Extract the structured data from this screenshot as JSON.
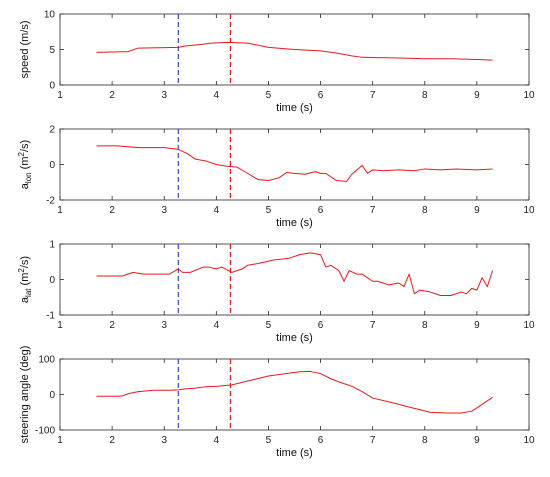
{
  "colors": {
    "series": "#e8191c",
    "marker_blue": "#3344dd",
    "marker_red": "#e8191c",
    "axis": "#262626"
  },
  "chart_data": [
    {
      "type": "line",
      "xlabel": "time (s)",
      "ylabel": "speed (m/s)",
      "xlim": [
        1,
        10
      ],
      "ylim": [
        0,
        10
      ],
      "xticks": [
        "1",
        "2",
        "3",
        "4",
        "5",
        "6",
        "7",
        "8",
        "9",
        "10"
      ],
      "yticks": [
        "0",
        "5",
        "10"
      ],
      "grid": false,
      "vlines": [
        {
          "x": 3.27,
          "color": "blue",
          "style": "dashed"
        },
        {
          "x": 4.27,
          "color": "red",
          "style": "dashed"
        }
      ],
      "series": [
        {
          "x": [
            1.7,
            2.3,
            2.5,
            3.27,
            3.4,
            3.7,
            3.9,
            4.2,
            4.6,
            5.0,
            5.5,
            6.0,
            6.3,
            6.6,
            6.8,
            7.5,
            8.0,
            8.5,
            9.0,
            9.3
          ],
          "y": [
            4.6,
            4.7,
            5.2,
            5.3,
            5.5,
            5.7,
            5.9,
            6.0,
            5.9,
            5.3,
            5.0,
            4.8,
            4.5,
            4.1,
            3.9,
            3.8,
            3.7,
            3.7,
            3.6,
            3.5
          ]
        }
      ]
    },
    {
      "type": "line",
      "xlabel": "time (s)",
      "ylabel": {
        "base": "a",
        "sub": "lon",
        "mid": " (m",
        "sup": "2",
        "end": "/s)"
      },
      "xlim": [
        1,
        10
      ],
      "ylim": [
        -2,
        2
      ],
      "xticks": [
        "1",
        "2",
        "3",
        "4",
        "5",
        "6",
        "7",
        "8",
        "9",
        "10"
      ],
      "yticks": [
        "-2",
        "0",
        "2"
      ],
      "grid": false,
      "vlines": [
        {
          "x": 3.27,
          "color": "blue",
          "style": "dashed"
        },
        {
          "x": 4.27,
          "color": "red",
          "style": "dashed"
        }
      ],
      "series": [
        {
          "x": [
            1.7,
            2.1,
            2.5,
            3.0,
            3.27,
            3.45,
            3.6,
            3.8,
            4.0,
            4.2,
            4.4,
            4.6,
            4.8,
            5.0,
            5.2,
            5.35,
            5.5,
            5.7,
            5.9,
            6.0,
            6.1,
            6.3,
            6.5,
            6.6,
            6.8,
            6.9,
            7.0,
            7.2,
            7.5,
            7.8,
            8.0,
            8.3,
            8.6,
            9.0,
            9.3
          ],
          "y": [
            1.05,
            1.05,
            0.95,
            0.95,
            0.85,
            0.6,
            0.3,
            0.2,
            0.0,
            -0.1,
            -0.15,
            -0.5,
            -0.85,
            -0.9,
            -0.75,
            -0.45,
            -0.5,
            -0.55,
            -0.4,
            -0.5,
            -0.5,
            -0.9,
            -0.95,
            -0.55,
            -0.05,
            -0.5,
            -0.3,
            -0.35,
            -0.3,
            -0.35,
            -0.25,
            -0.3,
            -0.25,
            -0.3,
            -0.25
          ]
        }
      ]
    },
    {
      "type": "line",
      "xlabel": "time (s)",
      "ylabel": {
        "base": "a",
        "sub": "lat",
        "mid": " (m",
        "sup": "2",
        "end": "/s)"
      },
      "xlim": [
        1,
        10
      ],
      "ylim": [
        -1,
        1
      ],
      "xticks": [
        "1",
        "2",
        "3",
        "4",
        "5",
        "6",
        "7",
        "8",
        "9",
        "10"
      ],
      "yticks": [
        "-1",
        "0",
        "1"
      ],
      "grid": false,
      "vlines": [
        {
          "x": 3.27,
          "color": "blue",
          "style": "dashed"
        },
        {
          "x": 4.27,
          "color": "red",
          "style": "dashed"
        }
      ],
      "series": [
        {
          "x": [
            1.7,
            2.2,
            2.4,
            2.6,
            3.1,
            3.27,
            3.35,
            3.5,
            3.75,
            3.85,
            4.0,
            4.1,
            4.3,
            4.5,
            4.6,
            4.8,
            5.1,
            5.4,
            5.6,
            5.8,
            6.0,
            6.1,
            6.2,
            6.35,
            6.45,
            6.55,
            6.7,
            6.8,
            7.0,
            7.1,
            7.3,
            7.5,
            7.6,
            7.7,
            7.8,
            7.9,
            8.1,
            8.3,
            8.5,
            8.7,
            8.8,
            8.9,
            9.0,
            9.1,
            9.2,
            9.3
          ],
          "y": [
            0.1,
            0.1,
            0.2,
            0.15,
            0.15,
            0.3,
            0.2,
            0.2,
            0.35,
            0.35,
            0.3,
            0.35,
            0.2,
            0.3,
            0.4,
            0.45,
            0.55,
            0.6,
            0.7,
            0.75,
            0.7,
            0.35,
            0.4,
            0.25,
            -0.05,
            0.25,
            0.15,
            0.15,
            -0.05,
            -0.05,
            -0.15,
            -0.1,
            -0.2,
            0.15,
            -0.4,
            -0.3,
            -0.35,
            -0.45,
            -0.45,
            -0.35,
            -0.4,
            -0.25,
            -0.3,
            0.05,
            -0.2,
            0.25
          ]
        }
      ]
    },
    {
      "type": "line",
      "xlabel": "time (s)",
      "ylabel": "steering angle (deg)",
      "xlim": [
        1,
        10
      ],
      "ylim": [
        -100,
        100
      ],
      "xticks": [
        "1",
        "2",
        "3",
        "4",
        "5",
        "6",
        "7",
        "8",
        "9",
        "10"
      ],
      "yticks": [
        "-100",
        "0",
        "100"
      ],
      "grid": false,
      "vlines": [
        {
          "x": 3.27,
          "color": "blue",
          "style": "dashed"
        },
        {
          "x": 4.27,
          "color": "red",
          "style": "dashed"
        }
      ],
      "series": [
        {
          "x": [
            1.7,
            2.0,
            2.1,
            2.2,
            2.3,
            2.5,
            2.8,
            3.1,
            3.27,
            3.4,
            3.6,
            3.8,
            4.0,
            4.3,
            4.6,
            5.0,
            5.3,
            5.6,
            5.8,
            6.0,
            6.2,
            6.4,
            6.6,
            6.8,
            7.0,
            7.4,
            7.8,
            8.1,
            8.4,
            8.7,
            8.9,
            9.1,
            9.3
          ],
          "y": [
            -5,
            -5,
            -5,
            -4,
            2,
            8,
            12,
            12,
            13,
            16,
            18,
            22,
            23,
            27,
            38,
            52,
            58,
            64,
            65,
            59,
            44,
            33,
            23,
            8,
            -10,
            -24,
            -39,
            -50,
            -52,
            -52,
            -47,
            -28,
            -8
          ]
        }
      ]
    }
  ]
}
